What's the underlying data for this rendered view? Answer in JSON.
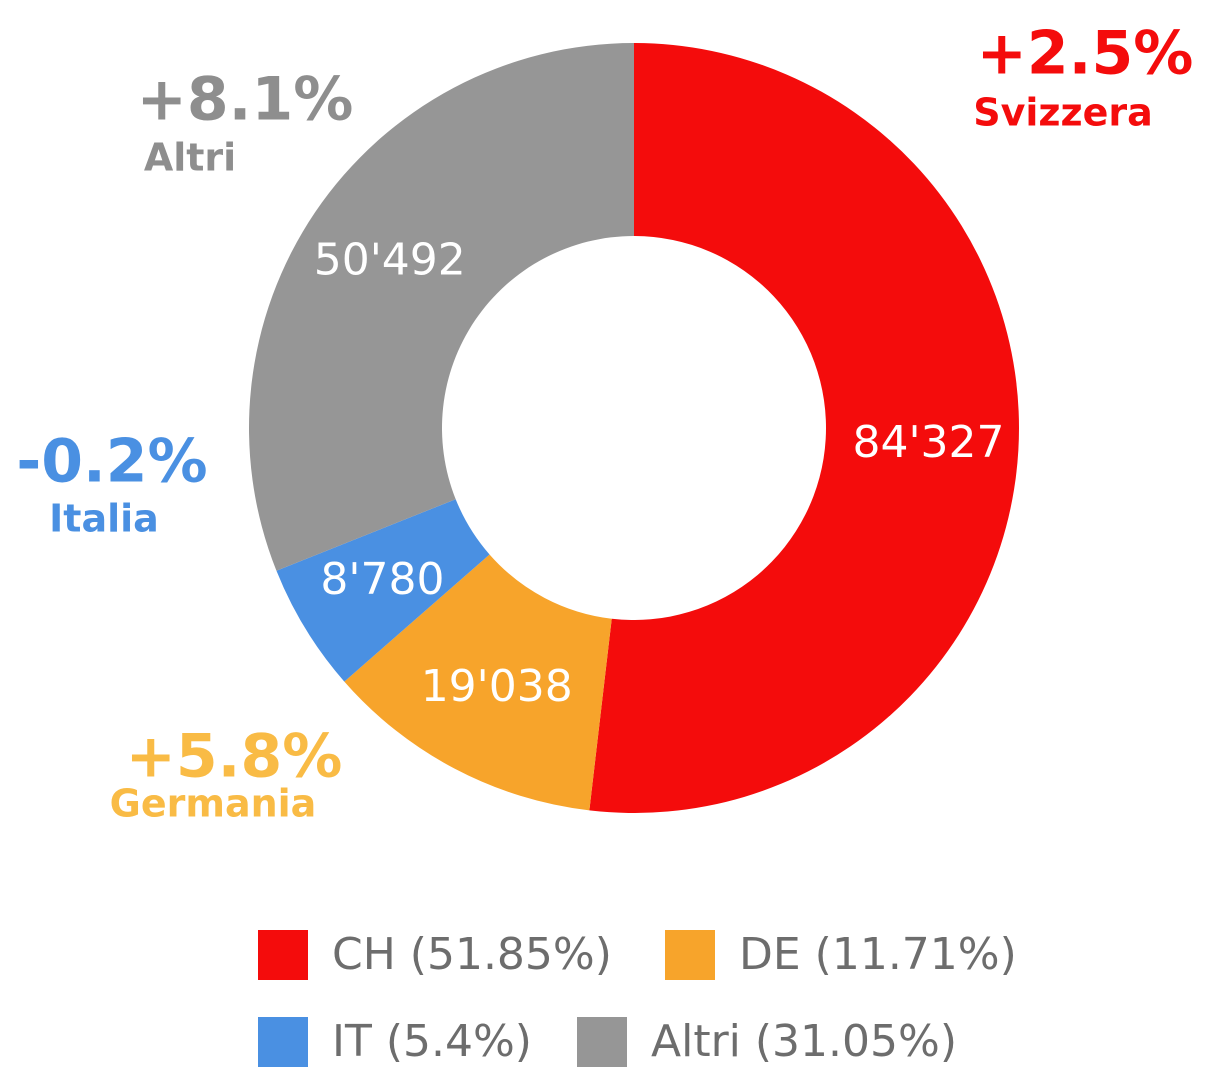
{
  "chart_data": {
    "type": "donut",
    "categories": [
      "CH (51.85%)",
      "DE (11.71%)",
      "IT (5.4%)",
      "Altri (31.05%)"
    ],
    "values": [
      84327,
      19038,
      8780,
      50492
    ],
    "value_labels": [
      "84'327",
      "19'038",
      "8'780",
      "50'492"
    ],
    "colors": [
      "#f40c0c",
      "#f7a42b",
      "#4a90e2",
      "#969696"
    ],
    "legend": "bottom",
    "annotations": [
      {
        "change": "+2.5%",
        "name": "Svizzera",
        "color": "#f40c0c"
      },
      {
        "change": "+5.8%",
        "name": "Germania",
        "color": "#f9bb45"
      },
      {
        "change": "-0.2%",
        "name": "Italia",
        "color": "#4a90e2"
      },
      {
        "change": "+8.1%",
        "name": "Altri",
        "color": "#8e8e8e"
      }
    ]
  }
}
